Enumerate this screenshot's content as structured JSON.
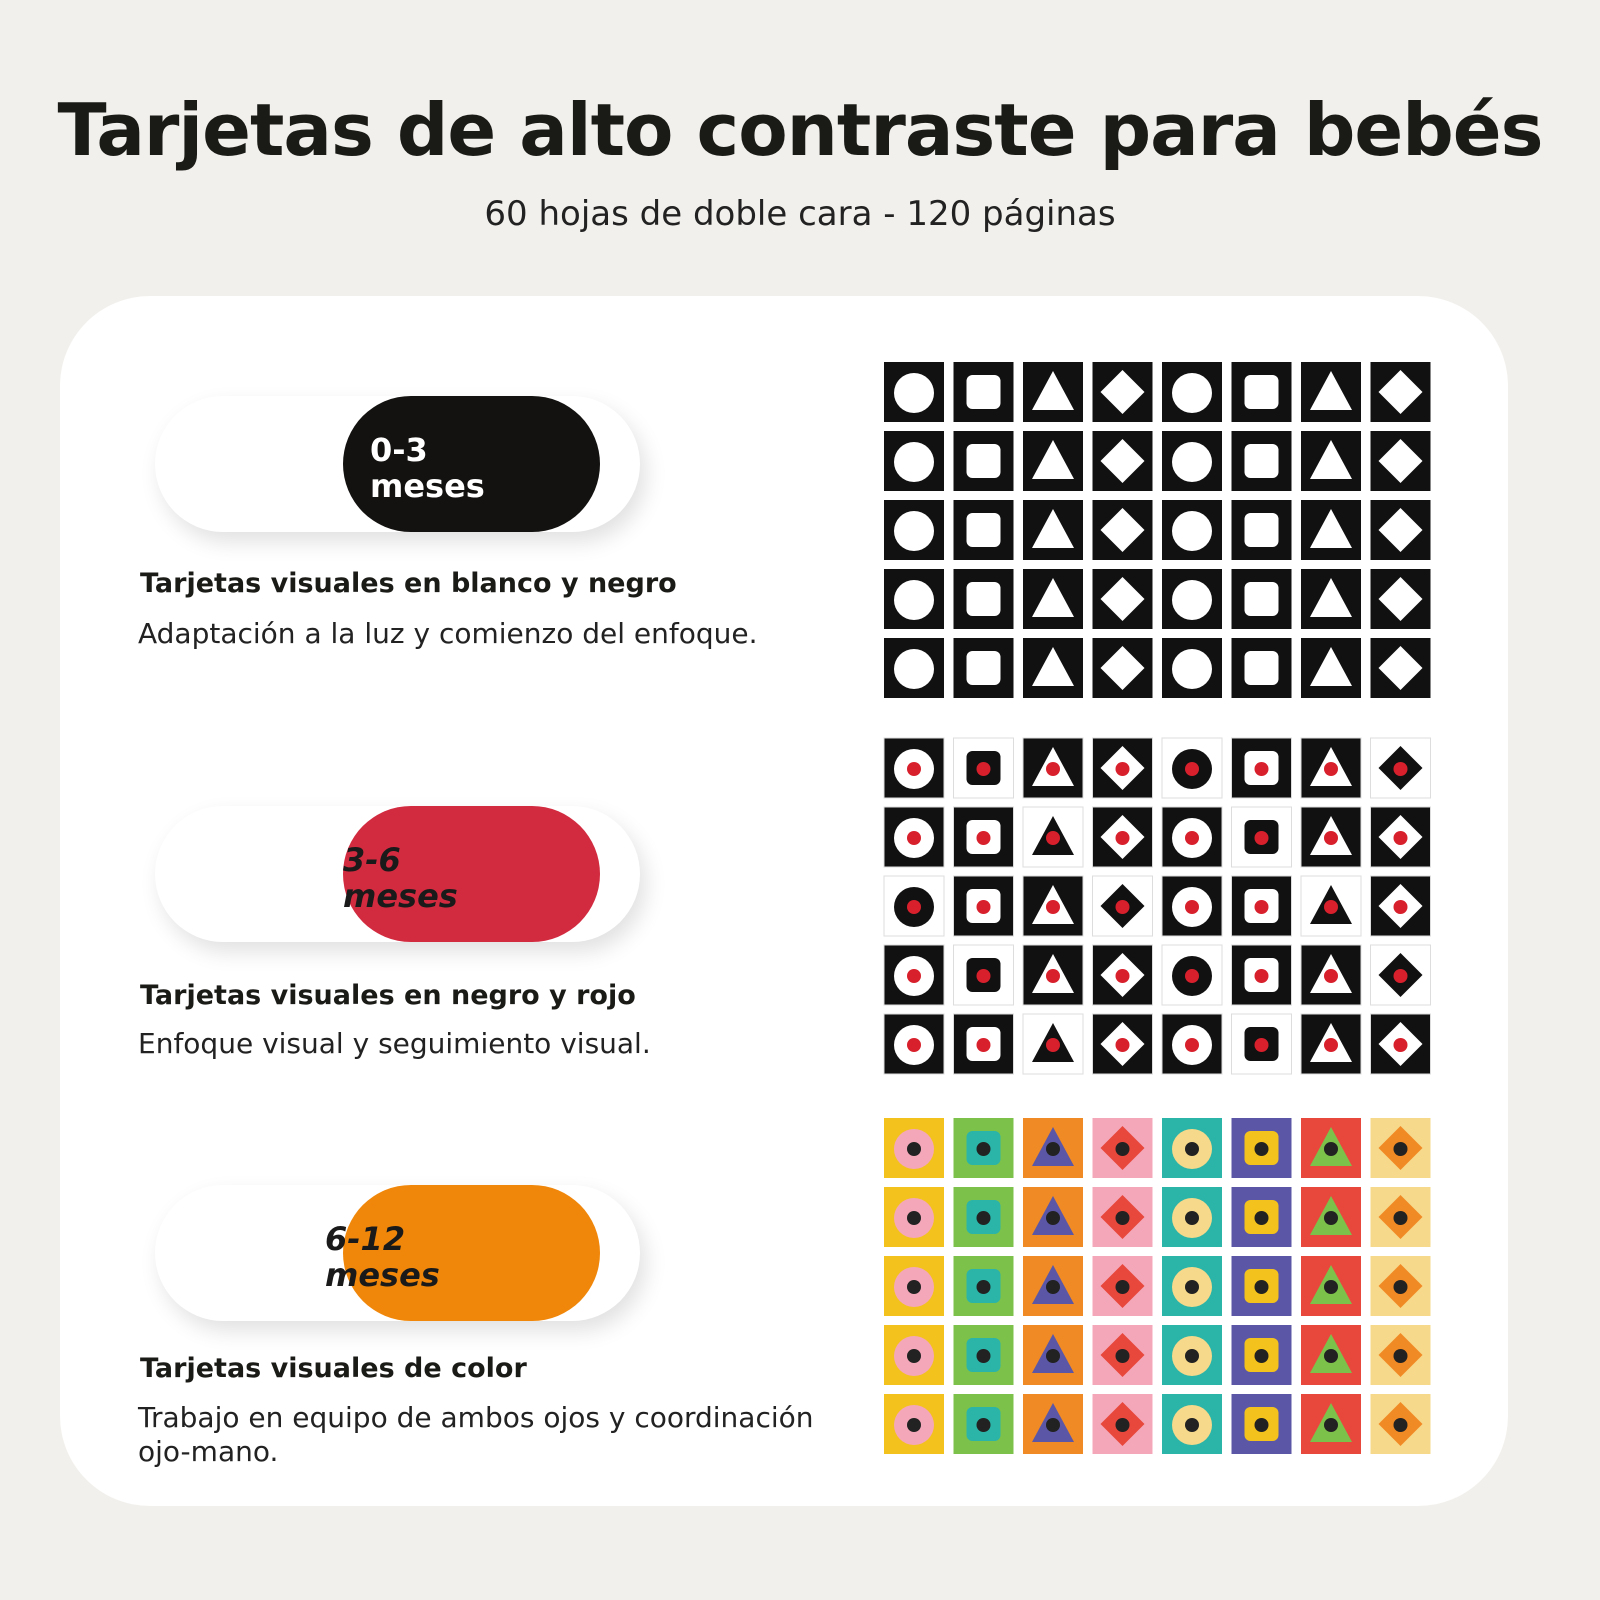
{
  "header": {
    "title": "Tarjetas de alto contraste para bebés",
    "subtitle": "60 hojas de doble cara - 120 páginas"
  },
  "sections": [
    {
      "badge_lines": [
        "0-3",
        "meses"
      ],
      "heading": "Tarjetas visuales en blanco y negro",
      "description": "Adaptación a la luz y comienzo del enfoque."
    },
    {
      "badge_lines": [
        "3-6",
        "meses"
      ],
      "heading": "Tarjetas visuales en negro y rojo",
      "description": "Enfoque visual y seguimiento visual."
    },
    {
      "badge_lines": [
        "6-12",
        "meses"
      ],
      "heading": "Tarjetas visuales de color",
      "description": "Trabajo en equipo de ambos ojos y coordinación ojo-mano."
    }
  ]
}
